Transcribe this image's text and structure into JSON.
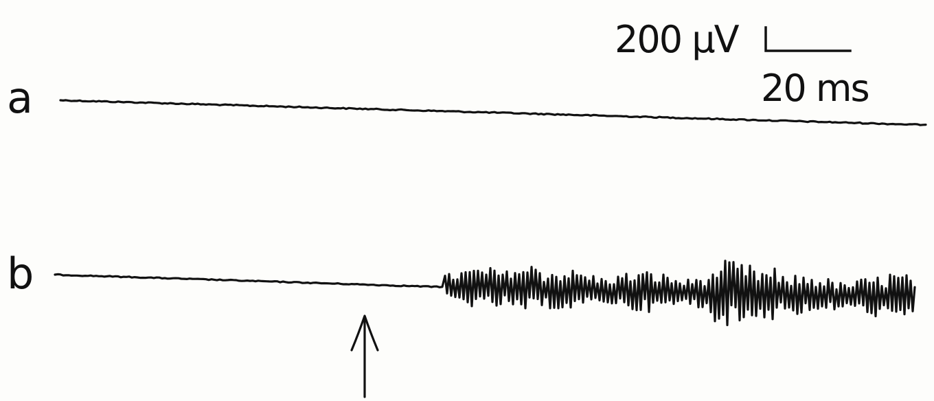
{
  "scale_bar": {
    "amplitude_label": "200 μV",
    "time_label": "20 ms"
  },
  "traces": [
    {
      "label": "a"
    },
    {
      "label": "b"
    }
  ],
  "colors": {
    "ink": "#111111",
    "paper": "#fdfdfb"
  },
  "icons": {
    "stimulus_marker": "arrow-up-icon"
  }
}
